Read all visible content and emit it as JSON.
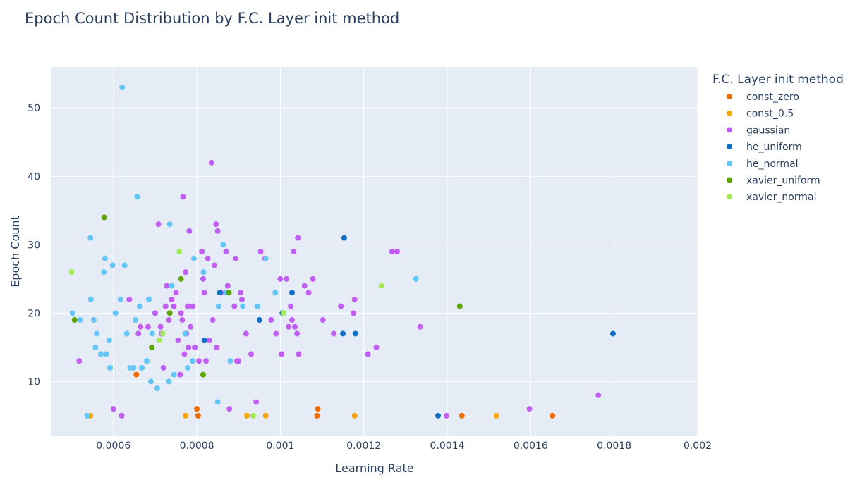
{
  "chart_data": {
    "type": "scatter",
    "title": "Epoch Count Distribution by F.C. Layer init method",
    "xlabel": "Learning Rate",
    "ylabel": "Epoch Count",
    "xlim": [
      0.00045,
      0.002
    ],
    "ylim": [
      2,
      56
    ],
    "x_ticks": [
      0.0006,
      0.0008,
      0.001,
      0.0012,
      0.0014,
      0.0016,
      0.0018,
      0.002
    ],
    "x_tick_labels": [
      "0.0006",
      "0.0008",
      "0.001",
      "0.0012",
      "0.0014",
      "0.0016",
      "0.0018",
      "0.002"
    ],
    "y_ticks": [
      10,
      20,
      30,
      40,
      50
    ],
    "y_tick_labels": [
      "10",
      "20",
      "30",
      "40",
      "50"
    ],
    "grid": true,
    "legend_title": "F.C. Layer init method",
    "legend_position": "right",
    "series": [
      {
        "name": "const_zero",
        "color": "#ef6c00",
        "points": [
          [
            0.000655,
            11
          ],
          [
            0.0008,
            6
          ],
          [
            0.000803,
            5
          ],
          [
            0.00109,
            6
          ],
          [
            0.001088,
            5
          ],
          [
            0.001435,
            5
          ],
          [
            0.001652,
            5
          ]
        ]
      },
      {
        "name": "const_0.5",
        "color": "#f9a602",
        "points": [
          [
            0.000545,
            5
          ],
          [
            0.000773,
            5
          ],
          [
            0.00092,
            5
          ],
          [
            0.000965,
            5
          ],
          [
            0.001178,
            5
          ],
          [
            0.001518,
            5
          ]
        ]
      },
      {
        "name": "gaussian",
        "color": "#c05ff2",
        "points": [
          [
            0.000518,
            13
          ],
          [
            0.0006,
            6
          ],
          [
            0.00062,
            5
          ],
          [
            0.000638,
            22
          ],
          [
            0.00066,
            17
          ],
          [
            0.000665,
            18
          ],
          [
            0.000683,
            18
          ],
          [
            0.000692,
            15
          ],
          [
            0.0007,
            20
          ],
          [
            0.000708,
            33
          ],
          [
            0.000713,
            18
          ],
          [
            0.000715,
            17
          ],
          [
            0.00072,
            12
          ],
          [
            0.000725,
            21
          ],
          [
            0.000728,
            24
          ],
          [
            0.000733,
            19
          ],
          [
            0.00074,
            22
          ],
          [
            0.000745,
            21
          ],
          [
            0.00075,
            23
          ],
          [
            0.000755,
            16
          ],
          [
            0.00076,
            11
          ],
          [
            0.000762,
            20
          ],
          [
            0.000765,
            19
          ],
          [
            0.000767,
            37
          ],
          [
            0.00077,
            14
          ],
          [
            0.000773,
            26
          ],
          [
            0.000775,
            17
          ],
          [
            0.000778,
            21
          ],
          [
            0.00078,
            15
          ],
          [
            0.000782,
            32
          ],
          [
            0.000785,
            18
          ],
          [
            0.00079,
            21
          ],
          [
            0.000795,
            15
          ],
          [
            0.000805,
            13
          ],
          [
            0.000812,
            29
          ],
          [
            0.000815,
            25
          ],
          [
            0.000818,
            23
          ],
          [
            0.000822,
            13
          ],
          [
            0.000826,
            28
          ],
          [
            0.00083,
            16
          ],
          [
            0.000835,
            42
          ],
          [
            0.000838,
            19
          ],
          [
            0.000842,
            27
          ],
          [
            0.000846,
            33
          ],
          [
            0.000848,
            15
          ],
          [
            0.00085,
            32
          ],
          [
            0.000858,
            23
          ],
          [
            0.00087,
            29
          ],
          [
            0.000874,
            24
          ],
          [
            0.000878,
            6
          ],
          [
            0.00089,
            21
          ],
          [
            0.000893,
            28
          ],
          [
            0.000896,
            13
          ],
          [
            0.0009,
            13
          ],
          [
            0.000905,
            23
          ],
          [
            0.000908,
            22
          ],
          [
            0.000918,
            17
          ],
          [
            0.00093,
            14
          ],
          [
            0.000942,
            7
          ],
          [
            0.000953,
            29
          ],
          [
            0.000963,
            28
          ],
          [
            0.000978,
            19
          ],
          [
            0.00099,
            17
          ],
          [
            0.001,
            25
          ],
          [
            0.001003,
            14
          ],
          [
            0.001015,
            25
          ],
          [
            0.00102,
            18
          ],
          [
            0.001025,
            21
          ],
          [
            0.001028,
            19
          ],
          [
            0.001032,
            29
          ],
          [
            0.001035,
            18
          ],
          [
            0.00104,
            17
          ],
          [
            0.001042,
            31
          ],
          [
            0.001044,
            14
          ],
          [
            0.001058,
            24
          ],
          [
            0.001068,
            23
          ],
          [
            0.001078,
            25
          ],
          [
            0.001102,
            19
          ],
          [
            0.001128,
            17
          ],
          [
            0.001145,
            21
          ],
          [
            0.001175,
            20
          ],
          [
            0.001178,
            22
          ],
          [
            0.00121,
            14
          ],
          [
            0.00123,
            15
          ],
          [
            0.001268,
            29
          ],
          [
            0.00128,
            29
          ],
          [
            0.001335,
            18
          ],
          [
            0.001398,
            5
          ],
          [
            0.001597,
            6
          ],
          [
            0.001762,
            8
          ]
        ]
      },
      {
        "name": "he_uniform",
        "color": "#0f6fc6",
        "points": [
          [
            0.000818,
            16
          ],
          [
            0.000855,
            23
          ],
          [
            0.00095,
            19
          ],
          [
            0.001005,
            20
          ],
          [
            0.001028,
            23
          ],
          [
            0.00115,
            17
          ],
          [
            0.001153,
            31
          ],
          [
            0.00118,
            17
          ],
          [
            0.001378,
            5
          ],
          [
            0.001797,
            17
          ]
        ]
      },
      {
        "name": "he_normal",
        "color": "#64c6f7",
        "points": [
          [
            0.000502,
            20
          ],
          [
            0.00052,
            19
          ],
          [
            0.000537,
            5
          ],
          [
            0.000545,
            31
          ],
          [
            0.000546,
            22
          ],
          [
            0.000553,
            19
          ],
          [
            0.000557,
            15
          ],
          [
            0.00056,
            17
          ],
          [
            0.00057,
            14
          ],
          [
            0.000577,
            26
          ],
          [
            0.00058,
            28
          ],
          [
            0.000583,
            14
          ],
          [
            0.00059,
            16
          ],
          [
            0.000592,
            12
          ],
          [
            0.000598,
            27
          ],
          [
            0.000605,
            20
          ],
          [
            0.000617,
            22
          ],
          [
            0.000621,
            53
          ],
          [
            0.000627,
            27
          ],
          [
            0.000632,
            17
          ],
          [
            0.00064,
            12
          ],
          [
            0.000648,
            12
          ],
          [
            0.000653,
            19
          ],
          [
            0.000657,
            37
          ],
          [
            0.000663,
            21
          ],
          [
            0.000668,
            12
          ],
          [
            0.00068,
            13
          ],
          [
            0.000685,
            22
          ],
          [
            0.00069,
            10
          ],
          [
            0.000693,
            17
          ],
          [
            0.000705,
            9
          ],
          [
            0.000733,
            10
          ],
          [
            0.000735,
            33
          ],
          [
            0.00074,
            24
          ],
          [
            0.000745,
            11
          ],
          [
            0.000772,
            17
          ],
          [
            0.000778,
            12
          ],
          [
            0.00079,
            13
          ],
          [
            0.000793,
            28
          ],
          [
            0.000816,
            26
          ],
          [
            0.00085,
            7
          ],
          [
            0.000852,
            21
          ],
          [
            0.000863,
            30
          ],
          [
            0.00087,
            23
          ],
          [
            0.00088,
            13
          ],
          [
            0.00091,
            21
          ],
          [
            0.000945,
            21
          ],
          [
            0.000965,
            28
          ],
          [
            0.000988,
            23
          ],
          [
            0.001325,
            25
          ]
        ]
      },
      {
        "name": "xavier_uniform",
        "color": "#5ea400",
        "points": [
          [
            0.000507,
            19
          ],
          [
            0.000578,
            34
          ],
          [
            0.000692,
            15
          ],
          [
            0.000735,
            20
          ],
          [
            0.000762,
            25
          ],
          [
            0.000815,
            11
          ],
          [
            0.000877,
            23
          ],
          [
            0.00143,
            21
          ]
        ]
      },
      {
        "name": "xavier_normal",
        "color": "#a4ea57",
        "points": [
          [
            0.0005,
            26
          ],
          [
            0.00071,
            16
          ],
          [
            0.000718,
            17
          ],
          [
            0.000758,
            29
          ],
          [
            0.000935,
            5
          ],
          [
            0.001008,
            20
          ],
          [
            0.001242,
            24
          ]
        ]
      }
    ]
  }
}
